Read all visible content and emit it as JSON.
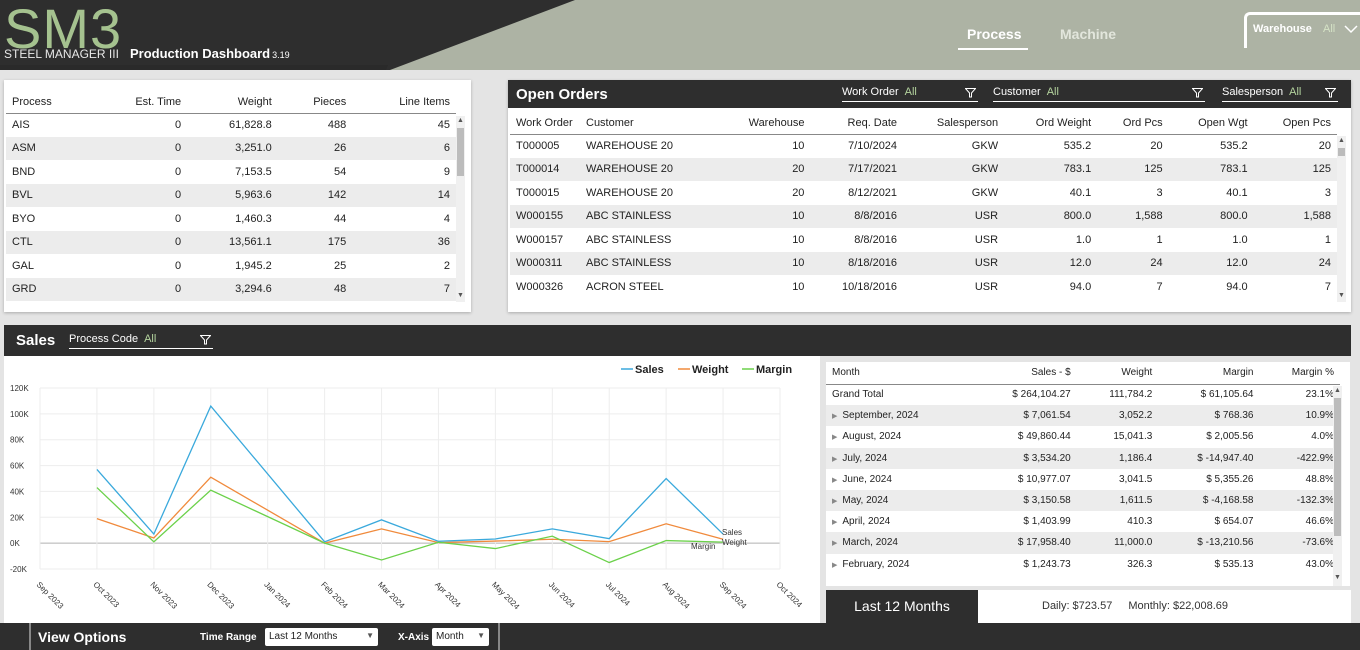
{
  "header": {
    "logo": "SM3",
    "logo_sub": "STEEL MANAGER III",
    "title": "Production Dashboard",
    "version": "3.19",
    "tabs": [
      {
        "label": "Process"
      },
      {
        "label": "Machine"
      }
    ],
    "warehouse_filter": {
      "label": "Warehouse",
      "value": "All"
    }
  },
  "process_table": {
    "columns": [
      "Process",
      "Est. Time",
      "Weight",
      "Pieces",
      "Line Items"
    ],
    "rows": [
      [
        "AIS",
        "0",
        "61,828.8",
        "488",
        "45"
      ],
      [
        "ASM",
        "0",
        "3,251.0",
        "26",
        "6"
      ],
      [
        "BND",
        "0",
        "7,153.5",
        "54",
        "9"
      ],
      [
        "BVL",
        "0",
        "5,963.6",
        "142",
        "14"
      ],
      [
        "BYO",
        "0",
        "1,460.3",
        "44",
        "4"
      ],
      [
        "CTL",
        "0",
        "13,561.1",
        "175",
        "36"
      ],
      [
        "GAL",
        "0",
        "1,945.2",
        "25",
        "2"
      ],
      [
        "GRD",
        "0",
        "3,294.6",
        "48",
        "7"
      ]
    ]
  },
  "open_orders": {
    "title": "Open Orders",
    "filters": [
      {
        "label": "Work Order",
        "value": "All"
      },
      {
        "label": "Customer",
        "value": "All"
      },
      {
        "label": "Salesperson",
        "value": "All"
      }
    ],
    "columns": [
      "Work Order",
      "Customer",
      "Warehouse",
      "Req. Date",
      "Salesperson",
      "Ord Weight",
      "Ord Pcs",
      "Open Wgt",
      "Open Pcs"
    ],
    "rows": [
      [
        "T000005",
        "WAREHOUSE 20",
        "10",
        "7/10/2024",
        "GKW",
        "535.2",
        "20",
        "535.2",
        "20"
      ],
      [
        "T000014",
        "WAREHOUSE 20",
        "20",
        "7/17/2021",
        "GKW",
        "783.1",
        "125",
        "783.1",
        "125"
      ],
      [
        "T000015",
        "WAREHOUSE 20",
        "20",
        "8/12/2021",
        "GKW",
        "40.1",
        "3",
        "40.1",
        "3"
      ],
      [
        "W000155",
        "ABC STAINLESS",
        "10",
        "8/8/2016",
        "USR",
        "800.0",
        "1,588",
        "800.0",
        "1,588"
      ],
      [
        "W000157",
        "ABC STAINLESS",
        "10",
        "8/8/2016",
        "USR",
        "1.0",
        "1",
        "1.0",
        "1"
      ],
      [
        "W000311",
        "ABC STAINLESS",
        "10",
        "8/18/2016",
        "USR",
        "12.0",
        "24",
        "12.0",
        "24"
      ],
      [
        "W000326",
        "ACRON STEEL",
        "10",
        "10/18/2016",
        "USR",
        "94.0",
        "7",
        "94.0",
        "7"
      ]
    ]
  },
  "sales": {
    "title": "Sales",
    "filter": {
      "label": "Process Code",
      "value": "All"
    },
    "table": {
      "columns": [
        "Month",
        "Sales - $",
        "Weight",
        "Margin",
        "Margin %"
      ],
      "rows": [
        [
          "Grand Total",
          "$ 264,104.27",
          "111,784.2",
          "$ 61,105.64",
          "23.1%"
        ],
        [
          "September, 2024",
          "$ 7,061.54",
          "3,052.2",
          "$ 768.36",
          "10.9%"
        ],
        [
          "August, 2024",
          "$ 49,860.44",
          "15,041.3",
          "$ 2,005.56",
          "4.0%"
        ],
        [
          "July, 2024",
          "$ 3,534.20",
          "1,186.4",
          "$ -14,947.40",
          "-422.9%"
        ],
        [
          "June, 2024",
          "$ 10,977.07",
          "3,041.5",
          "$ 5,355.26",
          "48.8%"
        ],
        [
          "May, 2024",
          "$ 3,150.58",
          "1,611.5",
          "$ -4,168.58",
          "-132.3%"
        ],
        [
          "April, 2024",
          "$ 1,403.99",
          "410.3",
          "$ 654.07",
          "46.6%"
        ],
        [
          "March, 2024",
          "$ 17,958.40",
          "11,000.0",
          "$ -13,210.56",
          "-73.6%"
        ],
        [
          "February, 2024",
          "$ 1,243.73",
          "326.3",
          "$ 535.13",
          "43.0%"
        ]
      ]
    },
    "range_label": "Last 12 Months",
    "daily": "Daily: $723.57",
    "monthly": "Monthly: $22,008.69"
  },
  "view_options": {
    "title": "View Options",
    "time_range_label": "Time Range",
    "time_range_value": "Last 12 Months",
    "xaxis_label": "X-Axis",
    "xaxis_value": "Month"
  },
  "chart_data": {
    "type": "line",
    "x": [
      "Sep 2023",
      "Oct 2023",
      "Nov 2023",
      "Dec 2023",
      "Jan 2024",
      "Feb 2024",
      "Mar 2024",
      "Apr 2024",
      "May 2024",
      "Jun 2024",
      "Jul 2024",
      "Aug 2024",
      "Sep 2024",
      "Oct 2024"
    ],
    "series": [
      {
        "name": "Sales",
        "color": "#3aa9dc",
        "values": [
          null,
          57000,
          7000,
          106000,
          null,
          1000,
          18000,
          1400,
          3200,
          11000,
          3500,
          50000,
          7000,
          null
        ]
      },
      {
        "name": "Weight",
        "color": "#f08a3c",
        "values": [
          null,
          19000,
          4000,
          51000,
          null,
          0,
          11000,
          400,
          1600,
          3000,
          1200,
          15000,
          3000,
          null
        ]
      },
      {
        "name": "Margin",
        "color": "#6bd14a",
        "values": [
          null,
          43000,
          1000,
          41000,
          null,
          0,
          -13000,
          700,
          -4200,
          5400,
          -15000,
          2000,
          800,
          null
        ]
      }
    ],
    "yticks": [
      "120K",
      "100K",
      "80K",
      "60K",
      "40K",
      "20K",
      "0K",
      "-20K"
    ],
    "ylim": [
      -20000,
      120000
    ],
    "grid": true,
    "legend": "top-right",
    "end_labels": [
      "Sales",
      "Weight",
      "Margin"
    ]
  }
}
